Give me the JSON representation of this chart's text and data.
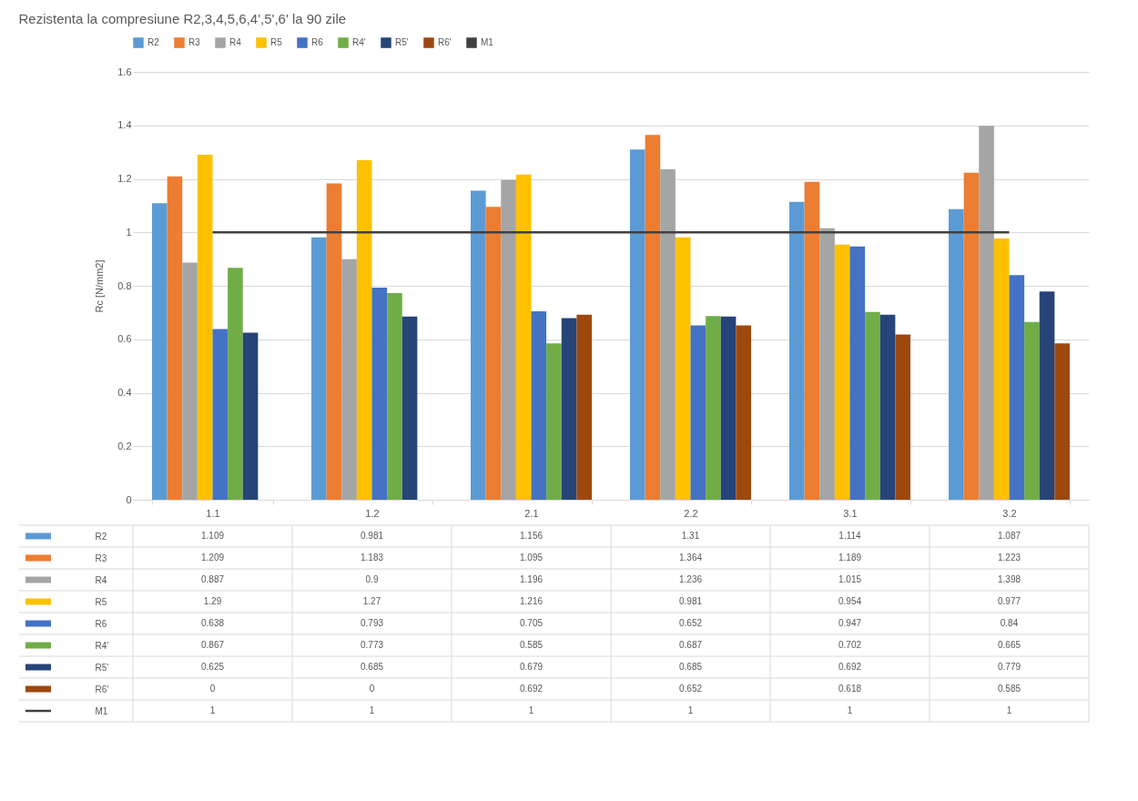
{
  "chart_data": {
    "type": "bar",
    "title": "Rezistenta la compresiune R2,3,4,5,6,4',5',6' la 90 zile",
    "ylabel": "Rc [N/mm2]",
    "categories": [
      "1.1",
      "1.2",
      "2.1",
      "2.2",
      "3.1",
      "3.2"
    ],
    "series": [
      {
        "name": "R2",
        "color": "#5b9bd5",
        "values": [
          1.109,
          0.981,
          1.156,
          1.31,
          1.114,
          1.087
        ]
      },
      {
        "name": "R3",
        "color": "#ed7d31",
        "values": [
          1.209,
          1.183,
          1.095,
          1.364,
          1.189,
          1.223
        ]
      },
      {
        "name": "R4",
        "color": "#a5a5a5",
        "values": [
          0.887,
          0.9,
          1.196,
          1.236,
          1.015,
          1.398
        ]
      },
      {
        "name": "R5",
        "color": "#ffc000",
        "values": [
          1.29,
          1.27,
          1.216,
          0.981,
          0.954,
          0.977
        ]
      },
      {
        "name": "R6",
        "color": "#4472c4",
        "values": [
          0.638,
          0.793,
          0.705,
          0.652,
          0.947,
          0.84
        ]
      },
      {
        "name": "R4'",
        "color": "#70ad47",
        "values": [
          0.867,
          0.773,
          0.585,
          0.687,
          0.702,
          0.665
        ]
      },
      {
        "name": "R5'",
        "color": "#264478",
        "values": [
          0.625,
          0.685,
          0.679,
          0.685,
          0.692,
          0.779
        ]
      },
      {
        "name": "R6'",
        "color": "#9e480e",
        "values": [
          0,
          0,
          0.692,
          0.652,
          0.618,
          0.585
        ]
      },
      {
        "name": "M1",
        "color": "#404040",
        "type": "line",
        "values": [
          1,
          1,
          1,
          1,
          1,
          1
        ]
      }
    ],
    "ylim": [
      0,
      1.6
    ],
    "yticks": [
      0,
      0.2,
      0.4,
      0.6,
      0.8,
      1,
      1.2,
      1.4,
      1.6
    ],
    "grid": "y",
    "legend": "top",
    "data_labels": true
  }
}
